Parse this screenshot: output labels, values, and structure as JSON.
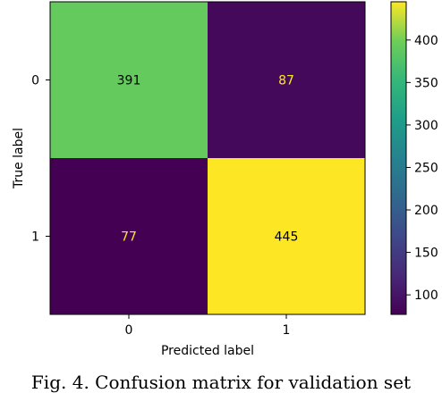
{
  "chart_data": {
    "type": "heatmap",
    "title": "",
    "xlabel": "Predicted label",
    "ylabel": "True label",
    "x_categories": [
      "0",
      "1"
    ],
    "y_categories": [
      "0",
      "1"
    ],
    "matrix": [
      [
        391,
        87
      ],
      [
        77,
        445
      ]
    ],
    "colormap": "viridis",
    "colorbar": {
      "range": [
        77,
        445
      ],
      "ticks": [
        100,
        150,
        200,
        250,
        300,
        350,
        400
      ]
    },
    "cell_text_colors": {
      "dark_cell": "#fde725",
      "light_cell": "#000000"
    }
  },
  "caption": "Fig. 4. Confusion matrix for validation set"
}
